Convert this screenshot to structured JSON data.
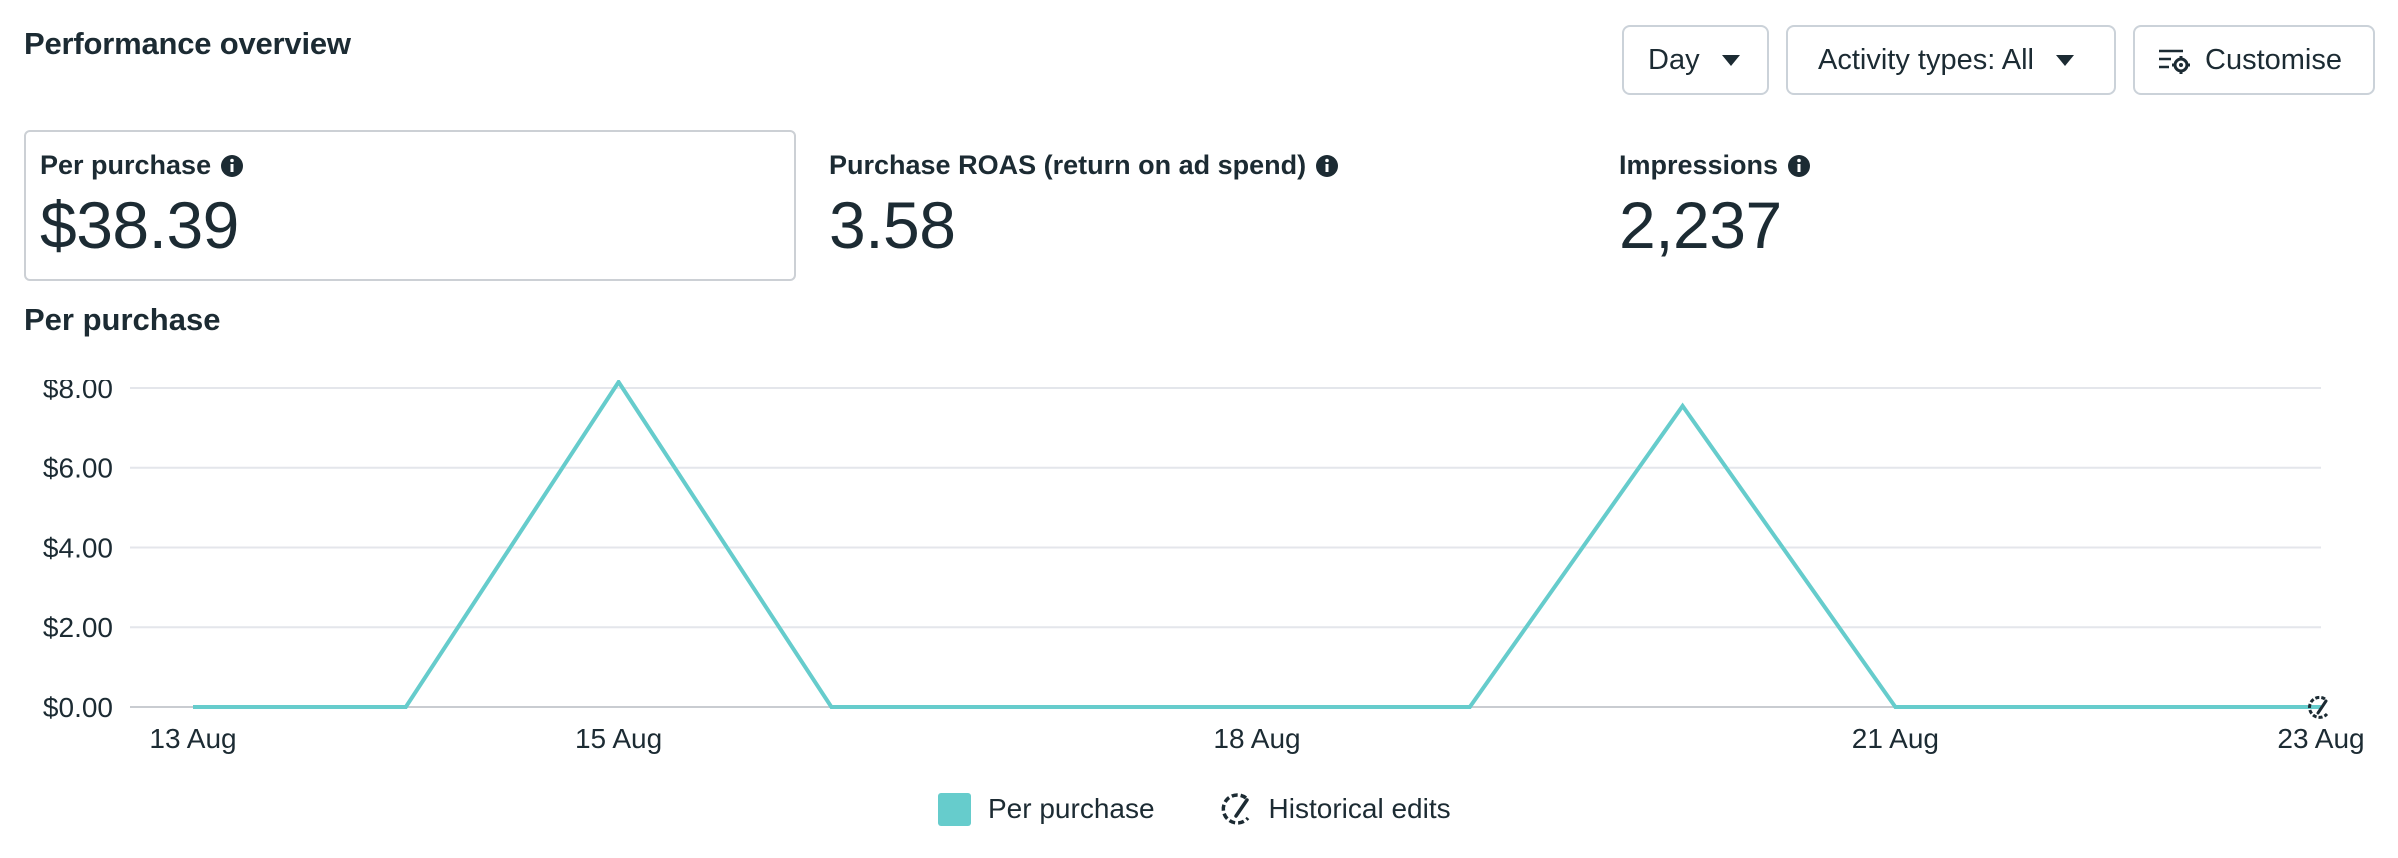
{
  "header": {
    "title": "Performance overview"
  },
  "controls": {
    "day_label": "Day",
    "activity_label": "Activity types: All",
    "customise_label": "Customise"
  },
  "metrics": [
    {
      "label": "Per purchase",
      "value": "$38.39"
    },
    {
      "label": "Purchase ROAS (return on ad spend)",
      "value": "3.58"
    },
    {
      "label": "Impressions",
      "value": "2,237"
    }
  ],
  "colors": {
    "series": "#66cccc",
    "text": "#1c2b33",
    "grid": "#e4e6eb"
  },
  "icons": {
    "info": "info-icon",
    "customise": "settings-list-icon",
    "historical": "historical-edits-icon"
  },
  "chart_data": {
    "type": "line",
    "title": "Per purchase",
    "x": [
      "13 Aug",
      "14 Aug",
      "15 Aug",
      "16 Aug",
      "17 Aug",
      "18 Aug",
      "19 Aug",
      "20 Aug",
      "21 Aug",
      "22 Aug",
      "23 Aug"
    ],
    "x_tick_labels": [
      "13 Aug",
      "15 Aug",
      "18 Aug",
      "21 Aug",
      "23 Aug"
    ],
    "y_tick_labels": [
      "$0.00",
      "$2.00",
      "$4.00",
      "$6.00",
      "$8.00"
    ],
    "ylim": [
      0,
      8.2
    ],
    "grid": true,
    "series": [
      {
        "name": "Per purchase",
        "values": [
          0,
          0,
          8.15,
          0,
          0,
          0,
          0,
          7.55,
          0,
          0,
          0
        ]
      }
    ],
    "legend": [
      "Per purchase",
      "Historical edits"
    ],
    "legend_position": "bottom"
  }
}
